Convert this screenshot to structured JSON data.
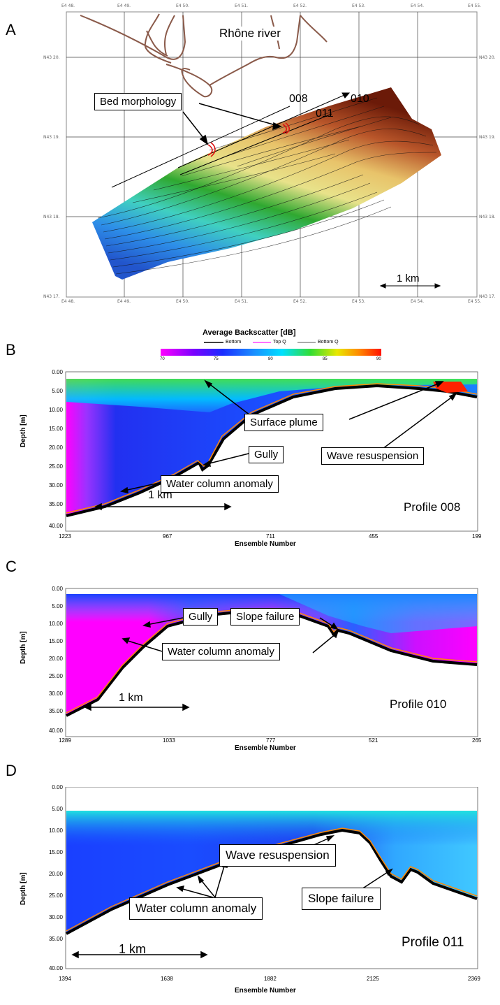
{
  "panelA": {
    "letter": "A",
    "river_label": "Rhône river",
    "bed_callout": "Bed morphology",
    "line_008": "008",
    "line_010": "010",
    "line_011": "011",
    "scale": "1 km",
    "lon_ticks": [
      "E4 48.",
      "E4 49.",
      "E4 50.",
      "E4 51.",
      "E4 52.",
      "E4 53.",
      "E4 54.",
      "E4 55."
    ],
    "lat_ticks": [
      "N43 20.",
      "N43 19.",
      "N43 18.",
      "N43 17."
    ]
  },
  "legend": {
    "title": "Average Backscatter [dB]",
    "bottom": "Bottom",
    "top": "Top Q",
    "bottomq": "Bottom Q",
    "ticks": [
      "70",
      "75",
      "80",
      "85",
      "90"
    ]
  },
  "panelB": {
    "letter": "B",
    "y_ticks": [
      "0.00",
      "5.00",
      "10.00",
      "15.00",
      "20.00",
      "25.00",
      "30.00",
      "35.00",
      "40.00"
    ],
    "x_ticks": [
      "1223",
      "967",
      "711",
      "455",
      "199"
    ],
    "ylabel": "Depth [m]",
    "xlabel": "Ensemble Number",
    "profile": "Profile 008",
    "scale": "1 km",
    "callouts": {
      "plume": "Surface plume",
      "gully": "Gully",
      "wave": "Wave resuspension",
      "anomaly": "Water column anomaly"
    }
  },
  "panelC": {
    "letter": "C",
    "y_ticks": [
      "0.00",
      "5.00",
      "10.00",
      "15.00",
      "20.00",
      "25.00",
      "30.00",
      "35.00",
      "40.00"
    ],
    "x_ticks": [
      "1289",
      "1033",
      "777",
      "521",
      "265"
    ],
    "ylabel": "Depth [m]",
    "xlabel": "Ensemble Number",
    "profile": "Profile 010",
    "scale": "1 km",
    "callouts": {
      "gully": "Gully",
      "slope": "Slope failure",
      "anomaly": "Water column anomaly"
    }
  },
  "panelD": {
    "letter": "D",
    "y_ticks": [
      "0.00",
      "5.00",
      "10.00",
      "15.00",
      "20.00",
      "25.00",
      "30.00",
      "35.00",
      "40.00"
    ],
    "x_ticks": [
      "1394",
      "1638",
      "1882",
      "2125",
      "2369"
    ],
    "ylabel": "Depth [m]",
    "xlabel": "Ensemble Number",
    "profile": "Profile 011",
    "scale": "1 km",
    "callouts": {
      "wave": "Wave resuspension",
      "anomaly": "Water column anomaly",
      "slope": "Slope failure"
    }
  },
  "colors": {
    "low": "#ff00ff",
    "mid_low": "#1a3cff",
    "mid": "#00c8ff",
    "mid_high": "#33dd33",
    "high": "#ff2200",
    "bathy_shallow": "#8b2a10",
    "bathy_deep": "#2266dd"
  }
}
